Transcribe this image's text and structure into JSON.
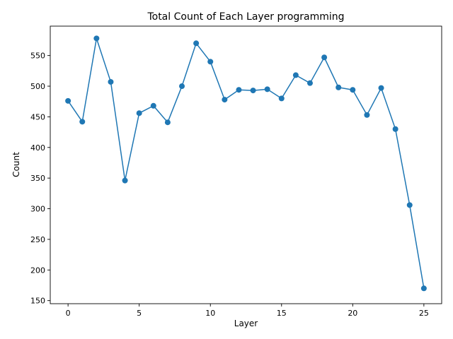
{
  "chart_data": {
    "type": "line",
    "title": "Total Count of Each Layer programming",
    "xlabel": "Layer",
    "ylabel": "Count",
    "xlim": [
      -1.25,
      26.25
    ],
    "ylim": [
      145,
      598
    ],
    "xticks": [
      0,
      5,
      10,
      15,
      20,
      25
    ],
    "yticks": [
      150,
      200,
      250,
      300,
      350,
      400,
      450,
      500,
      550
    ],
    "grid": false,
    "color": "#1f77b4",
    "marker": "circle",
    "x": [
      0,
      1,
      2,
      3,
      4,
      5,
      6,
      7,
      8,
      9,
      10,
      11,
      12,
      13,
      14,
      15,
      16,
      17,
      18,
      19,
      20,
      21,
      22,
      23,
      24,
      25
    ],
    "y": [
      476,
      442,
      578,
      507,
      346,
      456,
      468,
      441,
      500,
      570,
      540,
      478,
      494,
      493,
      495,
      480,
      518,
      505,
      547,
      498,
      494,
      453,
      497,
      430,
      306,
      170
    ]
  }
}
